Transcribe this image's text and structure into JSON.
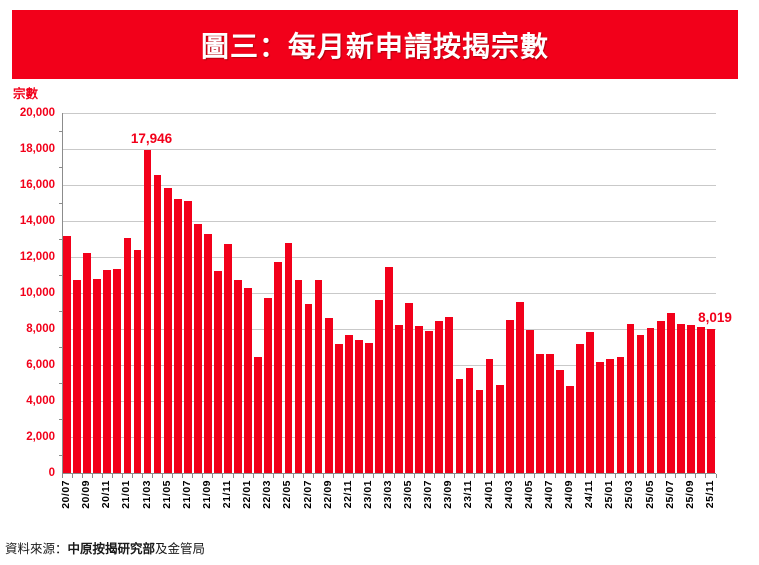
{
  "title": "圖三：每月新申請按揭宗數",
  "colors": {
    "accent_red": "#F2001A",
    "gridline": "#C9C9C9",
    "axis": "#8C8C8C",
    "x_label": "#000000"
  },
  "footer": {
    "prefix": "資料來源：",
    "bold": "中原按揭研究部",
    "suffix": "及金管局"
  },
  "chart_data": {
    "type": "bar",
    "title": "圖三：每月新申請按揭宗數",
    "xlabel": "",
    "ylabel": "宗數",
    "ylim": [
      0,
      20000
    ],
    "ytick_step": 2000,
    "ytick_labels": [
      "0",
      "2,000",
      "4,000",
      "6,000",
      "8,000",
      "10,000",
      "12,000",
      "14,000",
      "16,000",
      "18,000",
      "20,000"
    ],
    "grid": "horizontal",
    "legend": "none",
    "xtick_every": 2,
    "categories": [
      "20/07",
      "20/08",
      "20/09",
      "20/10",
      "20/11",
      "20/12",
      "21/01",
      "21/02",
      "21/03",
      "21/04",
      "21/05",
      "21/06",
      "21/07",
      "21/08",
      "21/09",
      "21/10",
      "21/11",
      "21/12",
      "22/01",
      "22/02",
      "22/03",
      "22/04",
      "22/05",
      "22/06",
      "22/07",
      "22/08",
      "22/09",
      "22/10",
      "22/11",
      "22/12",
      "23/01",
      "23/02",
      "23/03",
      "23/04",
      "23/05",
      "23/06",
      "23/07",
      "23/08",
      "23/09",
      "23/10",
      "23/11",
      "23/12",
      "24/01",
      "24/02",
      "24/03",
      "24/04",
      "24/05",
      "24/06",
      "24/07",
      "24/08",
      "24/09",
      "24/10",
      "24/11",
      "24/12",
      "25/01",
      "25/02",
      "25/03",
      "25/04",
      "25/05",
      "25/06",
      "25/07",
      "25/08",
      "25/09",
      "25/10",
      "25/11"
    ],
    "values": [
      13150,
      10750,
      12200,
      10800,
      11300,
      11350,
      13050,
      12400,
      17946,
      16550,
      15850,
      15250,
      15100,
      13850,
      13300,
      11250,
      12750,
      10700,
      10300,
      6450,
      9700,
      11750,
      12800,
      10750,
      9400,
      10750,
      8600,
      7150,
      7650,
      7400,
      7200,
      9600,
      11450,
      8250,
      9450,
      8150,
      7900,
      8450,
      8650,
      5200,
      5850,
      4600,
      6350,
      4900,
      8500,
      9500,
      7950,
      6600,
      6600,
      5750,
      4850,
      7150,
      7850,
      6150,
      6350,
      6450,
      8300,
      7650,
      8050,
      8450,
      8900,
      8300,
      8200,
      8100,
      8019
    ],
    "annotations": [
      {
        "category": "21/03",
        "text": "17,946"
      },
      {
        "category": "25/11",
        "text": "8,019"
      }
    ]
  }
}
